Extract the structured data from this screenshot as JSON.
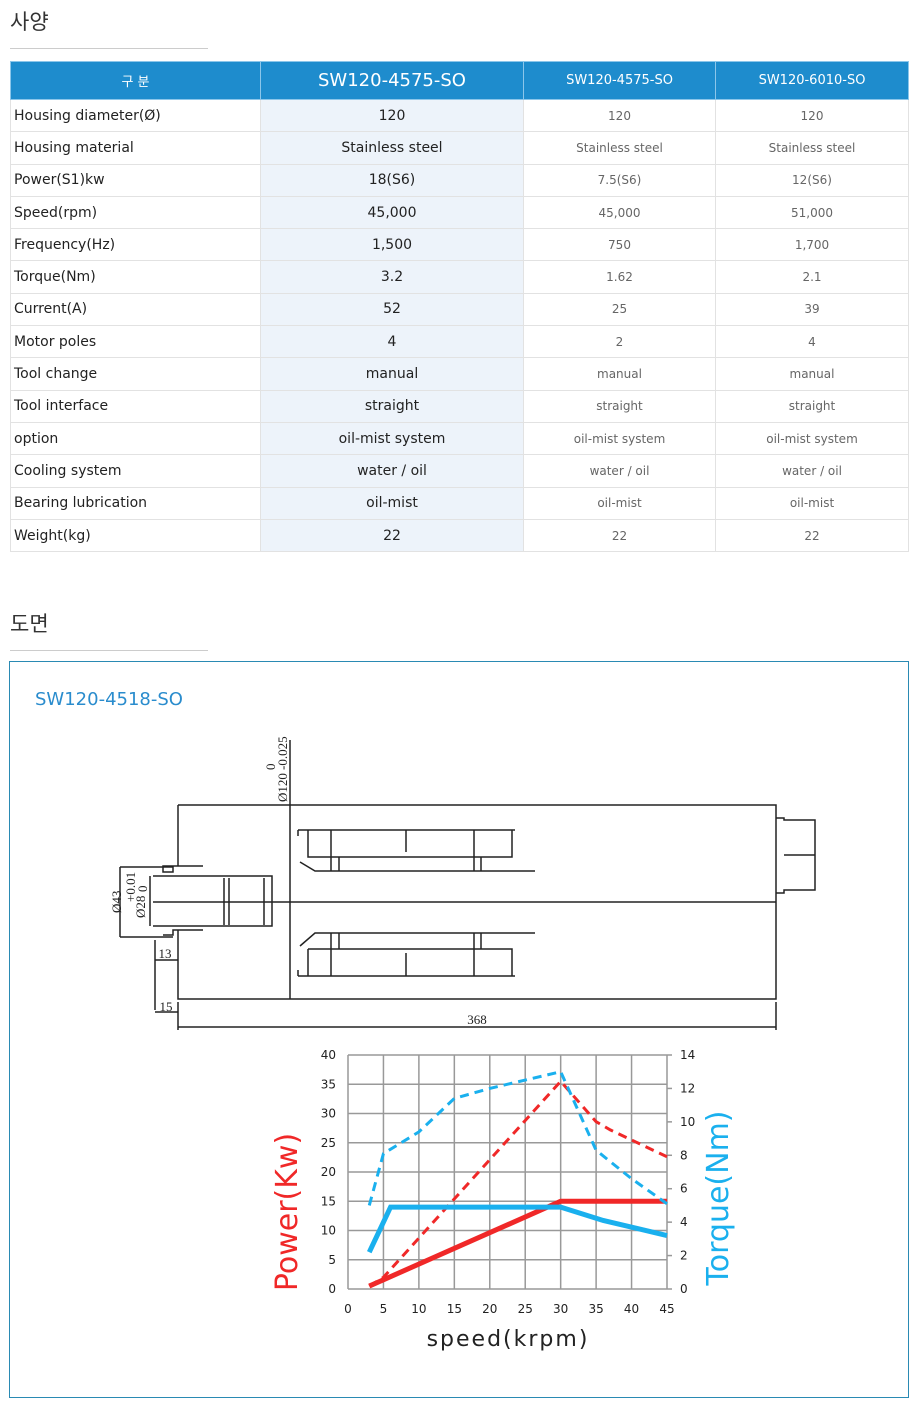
{
  "spec": {
    "title": "사양",
    "header": [
      "구 분",
      "SW120-4575-SO",
      "SW120-4575-SO",
      "SW120-6010-SO"
    ],
    "rows": [
      [
        "Housing diameter(Ø)",
        "120",
        "120",
        "120"
      ],
      [
        "Housing material",
        "Stainless steel",
        "Stainless steel",
        "Stainless steel"
      ],
      [
        "Power(S1)kw",
        "18(S6)",
        "7.5(S6)",
        "12(S6)"
      ],
      [
        "Speed(rpm)",
        "45,000",
        "45,000",
        "51,000"
      ],
      [
        "Frequency(Hz)",
        "1,500",
        "750",
        "1,700"
      ],
      [
        "Torque(Nm)",
        "3.2",
        "1.62",
        "2.1"
      ],
      [
        "Current(A)",
        "52",
        "25",
        "39"
      ],
      [
        "Motor poles",
        "4",
        "2",
        "4"
      ],
      [
        "Tool change",
        "manual",
        "manual",
        "manual"
      ],
      [
        "Tool interface",
        "straight",
        "straight",
        "straight"
      ],
      [
        "option",
        "oil-mist system",
        "oil-mist system",
        "oil-mist system"
      ],
      [
        "Cooling system",
        "water / oil",
        "water / oil",
        "water / oil"
      ],
      [
        "Bearing lubrication",
        "oil-mist",
        "oil-mist",
        "oil-mist"
      ],
      [
        "Weight(kg)",
        "22",
        "22",
        "22"
      ]
    ]
  },
  "drawing": {
    "title": "도면",
    "model": "SW120-4518-SO",
    "dims": {
      "d120": "Ø120",
      "tol120_top": "0",
      "tol120": "-0.025",
      "d43": "Ø43",
      "d28": "Ø28",
      "tol28_top": "+0.01",
      "tol28": "0",
      "l13": "13",
      "l15": "15",
      "l368": "368"
    }
  },
  "colors": {
    "header": "#1e8ccd",
    "highlight": "#edf3fa",
    "power": "#f02828",
    "torque": "#1ab0ee"
  },
  "chart_data": {
    "type": "line",
    "xlabel": "speed(krpm)",
    "ylabel": "Power(Kw)",
    "y2label": "Torque(Nm)",
    "xlim": [
      0,
      45
    ],
    "ylim": [
      0,
      40
    ],
    "y2lim": [
      0,
      14
    ],
    "xticks": [
      0,
      5,
      10,
      15,
      20,
      25,
      30,
      35,
      40,
      45
    ],
    "yticks": [
      0,
      5,
      10,
      15,
      20,
      25,
      30,
      35,
      40
    ],
    "y2ticks": [
      0,
      2,
      4,
      6,
      8,
      10,
      12,
      14
    ],
    "grid": true,
    "series": [
      {
        "axis": "left",
        "style": "solid",
        "color": "#f02828",
        "points": [
          [
            3,
            0.5
          ],
          [
            30,
            15
          ],
          [
            45,
            15
          ]
        ]
      },
      {
        "axis": "left",
        "style": "dashed",
        "color": "#f02828",
        "points": [
          [
            3,
            0.5
          ],
          [
            5,
            2
          ],
          [
            30,
            35.5
          ],
          [
            35,
            28.6
          ],
          [
            37,
            27.2
          ],
          [
            45,
            22.6
          ]
        ]
      },
      {
        "axis": "right",
        "style": "solid",
        "color": "#1ab0ee",
        "points": [
          [
            3,
            2.2
          ],
          [
            6,
            4.9
          ],
          [
            30,
            4.9
          ],
          [
            36,
            4.1
          ],
          [
            45,
            3.2
          ]
        ]
      },
      {
        "axis": "right",
        "style": "dashed",
        "color": "#1ab0ee",
        "points": [
          [
            3,
            5
          ],
          [
            5,
            8.1
          ],
          [
            10,
            9.4
          ],
          [
            15,
            11.4
          ],
          [
            20,
            12
          ],
          [
            25,
            12.5
          ],
          [
            30,
            13
          ],
          [
            35,
            8.3
          ],
          [
            40,
            6.6
          ],
          [
            45,
            5.1
          ]
        ]
      }
    ]
  }
}
